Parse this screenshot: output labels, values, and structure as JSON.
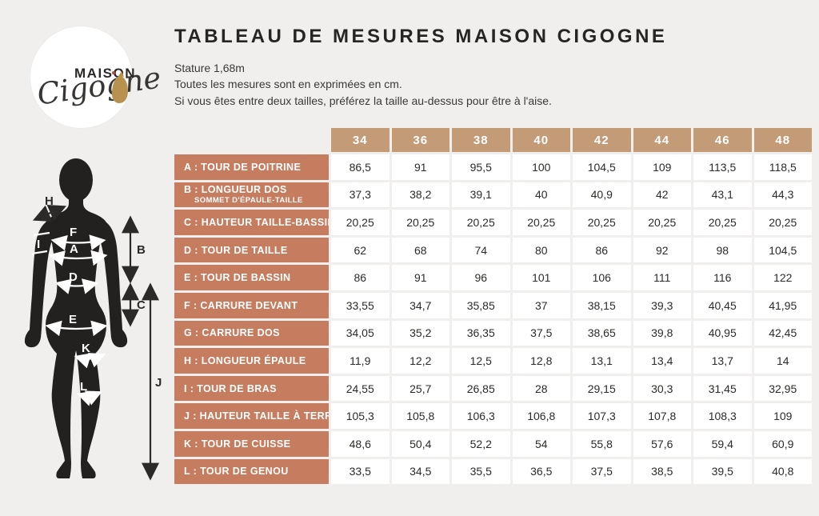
{
  "page": {
    "background": "#f1efee"
  },
  "logo": {
    "maison": "MAISON",
    "cigogne": "Cigogne"
  },
  "header": {
    "title": "TABLEAU DE MESURES MAISON CIGOGNE",
    "subtitle_lines": {
      "stature": "Stature 1,68m",
      "unit": "Toutes les mesures sont en exprimées en cm.",
      "advice": "Si vous êtes entre deux tailles, préférez la taille au-dessus pour être à l'aise."
    }
  },
  "colors": {
    "size_header_bg": "#c49b77",
    "row_label_bg": "#c67d5f",
    "cell_bg": "#ffffff",
    "text_dark": "#2d2b29",
    "silhouette": "#23211f",
    "gold": "#b9914f"
  },
  "table": {
    "sizes": [
      "34",
      "36",
      "38",
      "40",
      "42",
      "44",
      "46",
      "48"
    ],
    "rows": [
      {
        "label": "A : TOUR DE POITRINE",
        "sublabel": "",
        "values": [
          "86,5",
          "91",
          "95,5",
          "100",
          "104,5",
          "109",
          "113,5",
          "118,5"
        ]
      },
      {
        "label": "B : LONGUEUR DOS",
        "sublabel": "SOMMET D'ÉPAULE-TAILLE",
        "values": [
          "37,3",
          "38,2",
          "39,1",
          "40",
          "40,9",
          "42",
          "43,1",
          "44,3"
        ]
      },
      {
        "label": "C : HAUTEUR TAILLE-BASSIN",
        "sublabel": "",
        "values": [
          "20,25",
          "20,25",
          "20,25",
          "20,25",
          "20,25",
          "20,25",
          "20,25",
          "20,25"
        ]
      },
      {
        "label": "D : TOUR DE TAILLE",
        "sublabel": "",
        "values": [
          "62",
          "68",
          "74",
          "80",
          "86",
          "92",
          "98",
          "104,5"
        ]
      },
      {
        "label": "E : TOUR DE BASSIN",
        "sublabel": "",
        "values": [
          "86",
          "91",
          "96",
          "101",
          "106",
          "111",
          "116",
          "122"
        ]
      },
      {
        "label": "F : CARRURE DEVANT",
        "sublabel": "",
        "values": [
          "33,55",
          "34,7",
          "35,85",
          "37",
          "38,15",
          "39,3",
          "40,45",
          "41,95"
        ]
      },
      {
        "label": "G : CARRURE DOS",
        "sublabel": "",
        "values": [
          "34,05",
          "35,2",
          "36,35",
          "37,5",
          "38,65",
          "39,8",
          "40,95",
          "42,45"
        ]
      },
      {
        "label": "H : LONGUEUR ÉPAULE",
        "sublabel": "",
        "values": [
          "11,9",
          "12,2",
          "12,5",
          "12,8",
          "13,1",
          "13,4",
          "13,7",
          "14"
        ]
      },
      {
        "label": "I : TOUR DE BRAS",
        "sublabel": "",
        "values": [
          "24,55",
          "25,7",
          "26,85",
          "28",
          "29,15",
          "30,3",
          "31,45",
          "32,95"
        ]
      },
      {
        "label": "J : HAUTEUR TAILLE À TERRE",
        "sublabel": "",
        "values": [
          "105,3",
          "105,8",
          "106,3",
          "106,8",
          "107,3",
          "107,8",
          "108,3",
          "109"
        ]
      },
      {
        "label": "K : TOUR DE CUISSE",
        "sublabel": "",
        "values": [
          "48,6",
          "50,4",
          "52,2",
          "54",
          "55,8",
          "57,6",
          "59,4",
          "60,9"
        ]
      },
      {
        "label": "L : TOUR DE GENOU",
        "sublabel": "",
        "values": [
          "33,5",
          "34,5",
          "35,5",
          "36,5",
          "37,5",
          "38,5",
          "39,5",
          "40,8"
        ]
      }
    ]
  },
  "figure": {
    "markers": {
      "h": "H",
      "f": "F",
      "a": "A",
      "i": "I",
      "d": "D",
      "b": "B",
      "e": "E",
      "c": "C",
      "k": "K",
      "l": "L",
      "j": "J"
    }
  },
  "chart_data": {
    "type": "table",
    "title": "TABLEAU DE MESURES MAISON CIGOGNE",
    "unit": "cm",
    "stature": "1,68m",
    "categories": [
      "34",
      "36",
      "38",
      "40",
      "42",
      "44",
      "46",
      "48"
    ],
    "series": [
      {
        "name": "A : Tour de poitrine",
        "values": [
          86.5,
          91,
          95.5,
          100,
          104.5,
          109,
          113.5,
          118.5
        ]
      },
      {
        "name": "B : Longueur dos (sommet d'épaule-taille)",
        "values": [
          37.3,
          38.2,
          39.1,
          40,
          40.9,
          42,
          43.1,
          44.3
        ]
      },
      {
        "name": "C : Hauteur taille-bassin",
        "values": [
          20.25,
          20.25,
          20.25,
          20.25,
          20.25,
          20.25,
          20.25,
          20.25
        ]
      },
      {
        "name": "D : Tour de taille",
        "values": [
          62,
          68,
          74,
          80,
          86,
          92,
          98,
          104.5
        ]
      },
      {
        "name": "E : Tour de bassin",
        "values": [
          86,
          91,
          96,
          101,
          106,
          111,
          116,
          122
        ]
      },
      {
        "name": "F : Carrure devant",
        "values": [
          33.55,
          34.7,
          35.85,
          37,
          38.15,
          39.3,
          40.45,
          41.95
        ]
      },
      {
        "name": "G : Carrure dos",
        "values": [
          34.05,
          35.2,
          36.35,
          37.5,
          38.65,
          39.8,
          40.95,
          42.45
        ]
      },
      {
        "name": "H : Longueur épaule",
        "values": [
          11.9,
          12.2,
          12.5,
          12.8,
          13.1,
          13.4,
          13.7,
          14
        ]
      },
      {
        "name": "I : Tour de bras",
        "values": [
          24.55,
          25.7,
          26.85,
          28,
          29.15,
          30.3,
          31.45,
          32.95
        ]
      },
      {
        "name": "J : Hauteur taille à terre",
        "values": [
          105.3,
          105.8,
          106.3,
          106.8,
          107.3,
          107.8,
          108.3,
          109
        ]
      },
      {
        "name": "K : Tour de cuisse",
        "values": [
          48.6,
          50.4,
          52.2,
          54,
          55.8,
          57.6,
          59.4,
          60.9
        ]
      },
      {
        "name": "L : Tour de genou",
        "values": [
          33.5,
          34.5,
          35.5,
          36.5,
          37.5,
          38.5,
          39.5,
          40.8
        ]
      }
    ]
  }
}
